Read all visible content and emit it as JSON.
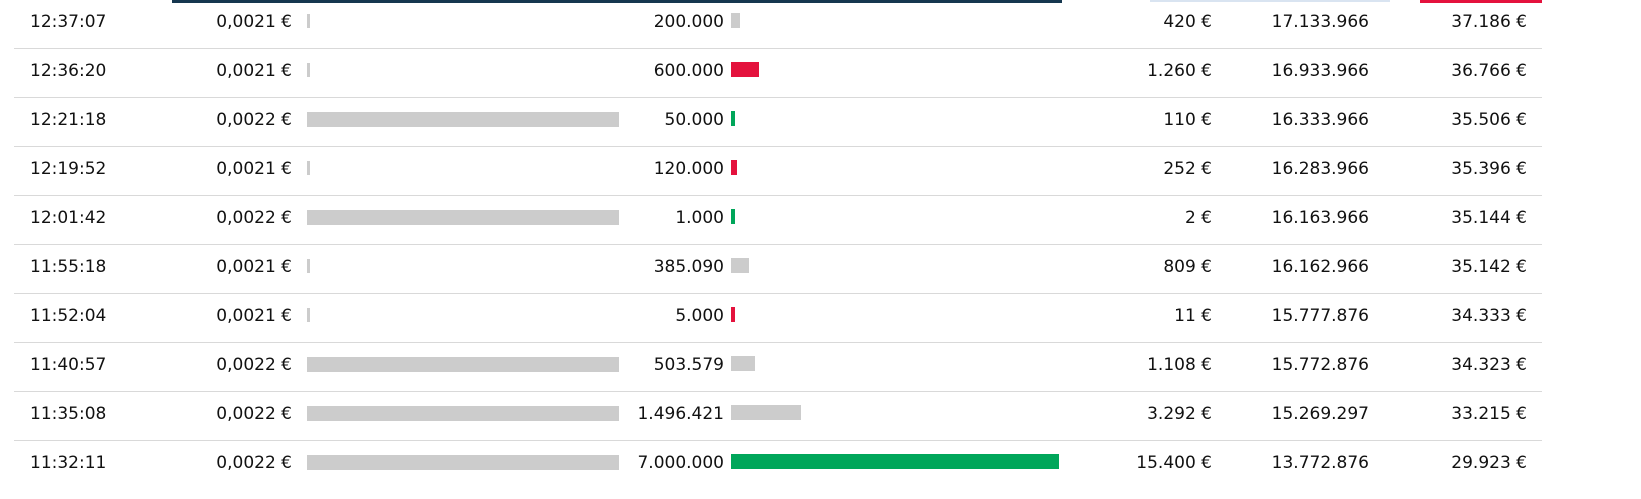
{
  "colors": {
    "buy": "#00a65a",
    "sell": "#e4123d",
    "neutral": "#cccccc",
    "navy": "#16374f"
  },
  "price_range": {
    "min": 0.0021,
    "max": 0.0022
  },
  "volume_max": 7000000,
  "rows": [
    {
      "time": "12:37:07",
      "price": "0,0021 €",
      "price_value": 0.0021,
      "volume": "200.000",
      "volume_value": 200000,
      "direction": "neutral",
      "turnover": "420 €",
      "cum_volume": "17.133.966",
      "cum_turnover": "37.186 €"
    },
    {
      "time": "12:36:20",
      "price": "0,0021 €",
      "price_value": 0.0021,
      "volume": "600.000",
      "volume_value": 600000,
      "direction": "sell",
      "turnover": "1.260 €",
      "cum_volume": "16.933.966",
      "cum_turnover": "36.766 €"
    },
    {
      "time": "12:21:18",
      "price": "0,0022 €",
      "price_value": 0.0022,
      "volume": "50.000",
      "volume_value": 50000,
      "direction": "buy",
      "turnover": "110 €",
      "cum_volume": "16.333.966",
      "cum_turnover": "35.506 €"
    },
    {
      "time": "12:19:52",
      "price": "0,0021 €",
      "price_value": 0.0021,
      "volume": "120.000",
      "volume_value": 120000,
      "direction": "sell",
      "turnover": "252 €",
      "cum_volume": "16.283.966",
      "cum_turnover": "35.396 €"
    },
    {
      "time": "12:01:42",
      "price": "0,0022 €",
      "price_value": 0.0022,
      "volume": "1.000",
      "volume_value": 1000,
      "direction": "buy",
      "turnover": "2 €",
      "cum_volume": "16.163.966",
      "cum_turnover": "35.144 €"
    },
    {
      "time": "11:55:18",
      "price": "0,0021 €",
      "price_value": 0.0021,
      "volume": "385.090",
      "volume_value": 385090,
      "direction": "neutral",
      "turnover": "809 €",
      "cum_volume": "16.162.966",
      "cum_turnover": "35.142 €"
    },
    {
      "time": "11:52:04",
      "price": "0,0021 €",
      "price_value": 0.0021,
      "volume": "5.000",
      "volume_value": 5000,
      "direction": "sell",
      "turnover": "11 €",
      "cum_volume": "15.777.876",
      "cum_turnover": "34.333 €"
    },
    {
      "time": "11:40:57",
      "price": "0,0022 €",
      "price_value": 0.0022,
      "volume": "503.579",
      "volume_value": 503579,
      "direction": "neutral",
      "turnover": "1.108 €",
      "cum_volume": "15.772.876",
      "cum_turnover": "34.323 €"
    },
    {
      "time": "11:35:08",
      "price": "0,0022 €",
      "price_value": 0.0022,
      "volume": "1.496.421",
      "volume_value": 1496421,
      "direction": "neutral",
      "turnover": "3.292 €",
      "cum_volume": "15.269.297",
      "cum_turnover": "33.215 €"
    },
    {
      "time": "11:32:11",
      "price": "0,0022 €",
      "price_value": 0.0022,
      "volume": "7.000.000",
      "volume_value": 7000000,
      "direction": "buy",
      "turnover": "15.400 €",
      "cum_volume": "13.772.876",
      "cum_turnover": "29.923 €"
    }
  ]
}
